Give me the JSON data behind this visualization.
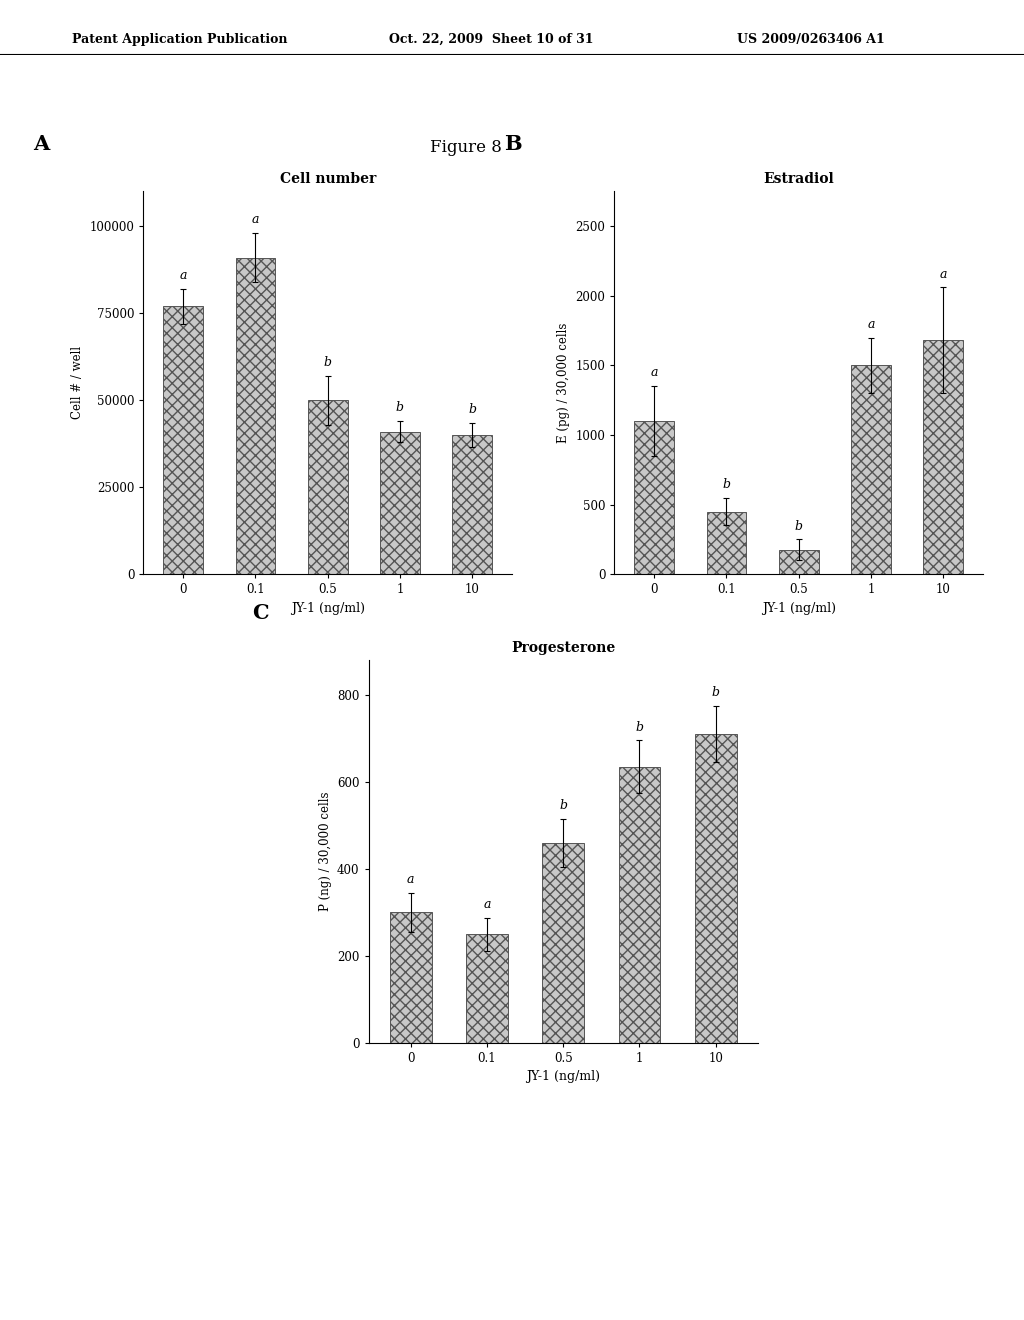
{
  "figure_title": "Figure 8",
  "patent_header_left": "Patent Application Publication",
  "patent_header_mid": "Oct. 22, 2009  Sheet 10 of 31",
  "patent_header_right": "US 2009/0263406 A1",
  "panel_A": {
    "label": "A",
    "title": "Cell number",
    "xlabel": "JY-1 (ng/ml)",
    "ylabel": "Cell # / well",
    "categories": [
      "0",
      "0.1",
      "0.5",
      "1",
      "10"
    ],
    "values": [
      77000,
      91000,
      50000,
      41000,
      40000
    ],
    "errors": [
      5000,
      7000,
      7000,
      3000,
      3500
    ],
    "sig_labels": [
      "a",
      "a",
      "b",
      "b",
      "b"
    ],
    "ylim": [
      0,
      110000
    ],
    "yticks": [
      0,
      25000,
      50000,
      75000,
      100000
    ]
  },
  "panel_B": {
    "label": "B",
    "title": "Estradiol",
    "xlabel": "JY-1 (ng/ml)",
    "ylabel": "E (pg) / 30,000 cells",
    "categories": [
      "0",
      "0.1",
      "0.5",
      "1",
      "10"
    ],
    "values": [
      1100,
      450,
      175,
      1500,
      1680
    ],
    "errors": [
      250,
      100,
      75,
      200,
      380
    ],
    "sig_labels": [
      "a",
      "b",
      "b",
      "a",
      "a"
    ],
    "ylim": [
      0,
      2750
    ],
    "yticks": [
      0,
      500,
      1000,
      1500,
      2000,
      2500
    ]
  },
  "panel_C": {
    "label": "C",
    "title": "Progesterone",
    "xlabel": "JY-1 (ng/ml)",
    "ylabel": "P (ng) / 30,000 cells",
    "categories": [
      "0",
      "0.1",
      "0.5",
      "1",
      "10"
    ],
    "values": [
      300,
      250,
      460,
      635,
      710
    ],
    "errors": [
      45,
      38,
      55,
      60,
      65
    ],
    "sig_labels": [
      "a",
      "a",
      "b",
      "b",
      "b"
    ],
    "ylim": [
      0,
      880
    ],
    "yticks": [
      0,
      200,
      400,
      600,
      800
    ]
  },
  "bar_color": "#c8c8c8",
  "bar_hatch": "xxx",
  "background_color": "#ffffff",
  "text_color": "#000000",
  "bar_edgecolor": "#555555"
}
